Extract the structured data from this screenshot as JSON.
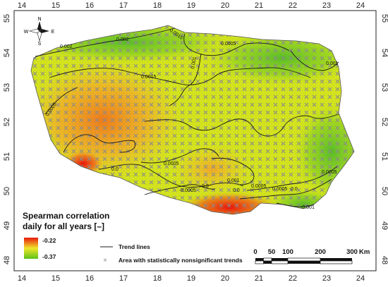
{
  "axes": {
    "x_ticks": [
      "14",
      "15",
      "16",
      "17",
      "18",
      "19",
      "20",
      "21",
      "22",
      "23",
      "24"
    ],
    "y_ticks": [
      "55",
      "54",
      "53",
      "52",
      "51",
      "50",
      "49",
      "48"
    ]
  },
  "compass": {
    "n": "N",
    "e": "E",
    "s": "S",
    "w": "W"
  },
  "contour_labels": [
    "0.0015",
    "0.002",
    "0.002",
    "0.0005",
    "0.001",
    "0.001",
    "0.0015",
    "0.0005",
    "0.0005",
    "0.0",
    "0.0",
    "0.001",
    "0.0005",
    "0.0",
    "-0.0005",
    "0.0005",
    "0.0005",
    "0.0",
    "-0.001"
  ],
  "legend": {
    "title_line1": "Spearman correlation",
    "title_line2": "daily for all years [–]",
    "max_value": "-0.22",
    "min_value": "-0.37",
    "max_color": "#e8180c",
    "min_color": "#5cc21a",
    "trend_lines_label": "Trend lines",
    "nonsig_label": "Area with statistically nonsignificant trends"
  },
  "scale_bar": {
    "labels": [
      "0",
      "50",
      "100",
      "200",
      "300"
    ],
    "unit": "Km"
  }
}
